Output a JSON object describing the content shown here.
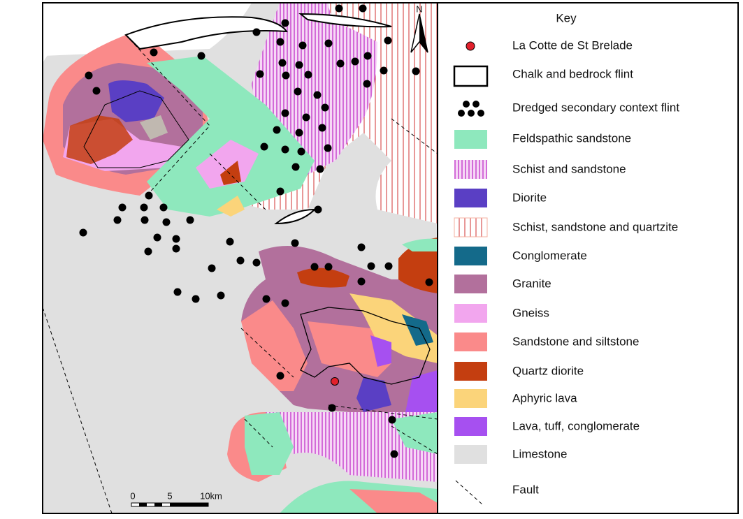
{
  "north": "N",
  "scale_bar": {
    "labels": [
      "0",
      "5",
      "10km"
    ]
  },
  "key": {
    "title": "Key",
    "items": [
      "La Cotte de St Brelade",
      "Chalk and bedrock flint",
      "Dredged secondary context flint",
      "Feldspathic sandstone",
      "Schist and sandstone",
      "Diorite",
      "Schist, sandstone and quartzite",
      "Conglomerate",
      "Granite",
      "Gneiss",
      "Sandstone and siltstone",
      "Quartz diorite",
      "Aphyric lava",
      "Lava, tuff, conglomerate",
      "Limestone",
      "Fault"
    ]
  }
}
